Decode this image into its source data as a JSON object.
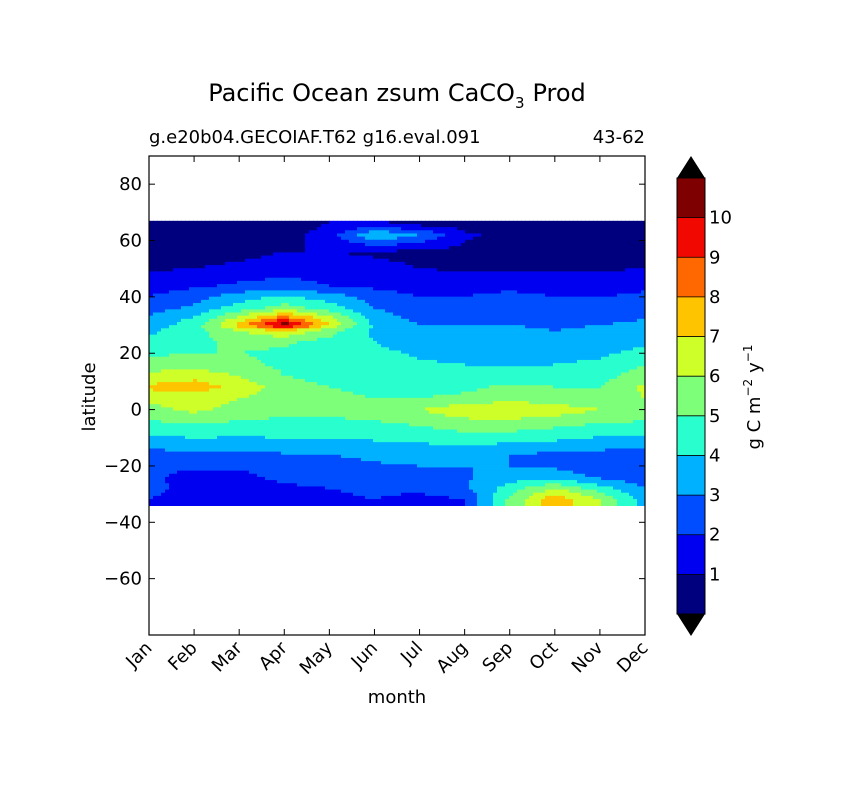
{
  "chart_data": {
    "type": "heatmap",
    "title": "Pacific Ocean zsum CaCO",
    "title_subscript": "3",
    "title_suffix": "Prod",
    "subtitle_left": "g.e20b04.GECOIAF.T62 g16.eval.091",
    "subtitle_right": "43-62",
    "xlabel": "month",
    "ylabel": "latitude",
    "x_categories": [
      "Jan",
      "Feb",
      "Mar",
      "Apr",
      "May",
      "Jun",
      "Jul",
      "Aug",
      "Sep",
      "Oct",
      "Nov",
      "Dec"
    ],
    "ylim": [
      -80,
      90
    ],
    "y_ticks": [
      80,
      60,
      40,
      20,
      0,
      -20,
      -40,
      -60
    ],
    "y_tick_labels": [
      "80",
      "60",
      "40",
      "20",
      "0",
      "−20",
      "−40",
      "−60"
    ],
    "data_lat_range": [
      -34,
      67
    ],
    "colorbar": {
      "label": "g C m",
      "label_exp1": "−2",
      "label_mid": "y",
      "label_exp2": "−1",
      "levels": [
        0,
        1,
        2,
        3,
        4,
        5,
        6,
        7,
        8,
        9,
        10,
        11
      ],
      "tick_labels": [
        "1",
        "2",
        "3",
        "4",
        "5",
        "6",
        "7",
        "8",
        "9",
        "10"
      ],
      "colors": [
        "#00007f",
        "#0000f1",
        "#004dff",
        "#00b1ff",
        "#29ffce",
        "#7dff7a",
        "#ceff29",
        "#ffc400",
        "#ff6800",
        "#f10800",
        "#7f0000"
      ],
      "under_color": "#000000",
      "over_color": "#000000"
    },
    "grid": false,
    "values_lat_rows_top_to_bottom": {
      "lat": [
        66,
        62,
        56,
        50,
        44,
        40,
        36,
        32,
        30,
        28,
        24,
        20,
        16,
        12,
        8,
        4,
        0,
        -4,
        -8,
        -12,
        -16,
        -20,
        -24,
        -28,
        -32
      ],
      "rows": [
        [
          0.5,
          0.5,
          0.5,
          0.5,
          1.0,
          1.2,
          0.6,
          0.5,
          0.5,
          0.5,
          0.5,
          0.5
        ],
        [
          0.5,
          0.5,
          0.5,
          0.5,
          1.5,
          4.0,
          3.0,
          1.2,
          0.6,
          0.5,
          0.5,
          0.5
        ],
        [
          0.6,
          0.6,
          0.7,
          1.0,
          1.0,
          0.9,
          0.8,
          0.7,
          0.6,
          0.6,
          0.6,
          0.6
        ],
        [
          0.9,
          1.0,
          1.2,
          1.5,
          1.4,
          1.2,
          1.0,
          0.9,
          0.9,
          0.9,
          0.9,
          1.0
        ],
        [
          1.6,
          1.8,
          2.2,
          2.5,
          2.0,
          1.8,
          1.6,
          1.5,
          1.5,
          1.4,
          1.5,
          1.8
        ],
        [
          2.0,
          2.6,
          3.5,
          4.2,
          3.5,
          2.5,
          2.0,
          2.0,
          2.5,
          2.0,
          2.0,
          2.2
        ],
        [
          2.6,
          3.2,
          4.5,
          5.5,
          4.5,
          3.0,
          2.5,
          2.6,
          2.8,
          2.6,
          2.6,
          2.6
        ],
        [
          3.2,
          4.2,
          6.5,
          9.0,
          6.5,
          3.5,
          2.8,
          2.9,
          3.0,
          2.8,
          2.8,
          3.0
        ],
        [
          3.5,
          4.5,
          7.5,
          10.8,
          7.0,
          3.8,
          3.0,
          3.0,
          3.0,
          2.9,
          3.0,
          3.2
        ],
        [
          3.8,
          4.6,
          6.0,
          7.0,
          5.5,
          3.8,
          3.2,
          3.1,
          3.1,
          3.0,
          3.1,
          3.4
        ],
        [
          4.2,
          4.8,
          5.2,
          5.2,
          4.6,
          4.0,
          3.6,
          3.4,
          3.3,
          3.2,
          3.3,
          3.8
        ],
        [
          4.8,
          5.0,
          5.0,
          4.8,
          4.5,
          4.2,
          3.9,
          3.7,
          3.6,
          3.6,
          3.8,
          4.4
        ],
        [
          5.5,
          5.5,
          5.3,
          4.8,
          4.5,
          4.3,
          4.1,
          4.0,
          3.9,
          4.0,
          4.2,
          5.0
        ],
        [
          6.3,
          6.6,
          6.0,
          5.0,
          4.6,
          4.4,
          4.3,
          4.3,
          4.3,
          4.4,
          4.6,
          5.6
        ],
        [
          7.2,
          7.6,
          6.6,
          5.5,
          5.0,
          4.8,
          4.7,
          4.8,
          5.2,
          5.0,
          5.0,
          6.2
        ],
        [
          6.3,
          6.5,
          6.0,
          5.5,
          5.2,
          5.0,
          5.0,
          5.2,
          5.6,
          5.4,
          5.3,
          6.0
        ],
        [
          5.6,
          6.3,
          5.6,
          5.4,
          5.4,
          5.6,
          6.0,
          6.7,
          7.0,
          6.5,
          6.0,
          6.0
        ],
        [
          5.0,
          5.2,
          5.0,
          4.8,
          4.8,
          5.0,
          5.3,
          5.8,
          5.8,
          5.6,
          5.2,
          5.0
        ],
        [
          4.2,
          4.4,
          4.3,
          4.3,
          4.2,
          4.3,
          4.6,
          5.0,
          5.0,
          4.6,
          4.3,
          4.2
        ],
        [
          3.5,
          3.6,
          3.6,
          3.7,
          3.8,
          3.9,
          4.0,
          4.1,
          4.0,
          3.8,
          3.6,
          3.4
        ],
        [
          2.6,
          2.7,
          2.8,
          2.9,
          3.0,
          3.2,
          3.3,
          3.2,
          3.0,
          2.8,
          2.6,
          2.5
        ],
        [
          2.4,
          2.2,
          2.1,
          2.4,
          2.6,
          2.9,
          3.0,
          3.0,
          3.0,
          2.8,
          2.4,
          2.2
        ],
        [
          2.3,
          1.5,
          1.8,
          2.2,
          2.5,
          2.7,
          2.8,
          2.9,
          3.5,
          3.6,
          2.8,
          2.3
        ],
        [
          2.1,
          1.9,
          1.6,
          1.8,
          2.0,
          2.2,
          2.4,
          2.8,
          4.5,
          6.0,
          4.5,
          3.0
        ],
        [
          2.0,
          1.8,
          1.5,
          1.6,
          1.8,
          2.0,
          1.5,
          2.0,
          5.2,
          7.8,
          6.0,
          3.5
        ]
      ]
    }
  }
}
